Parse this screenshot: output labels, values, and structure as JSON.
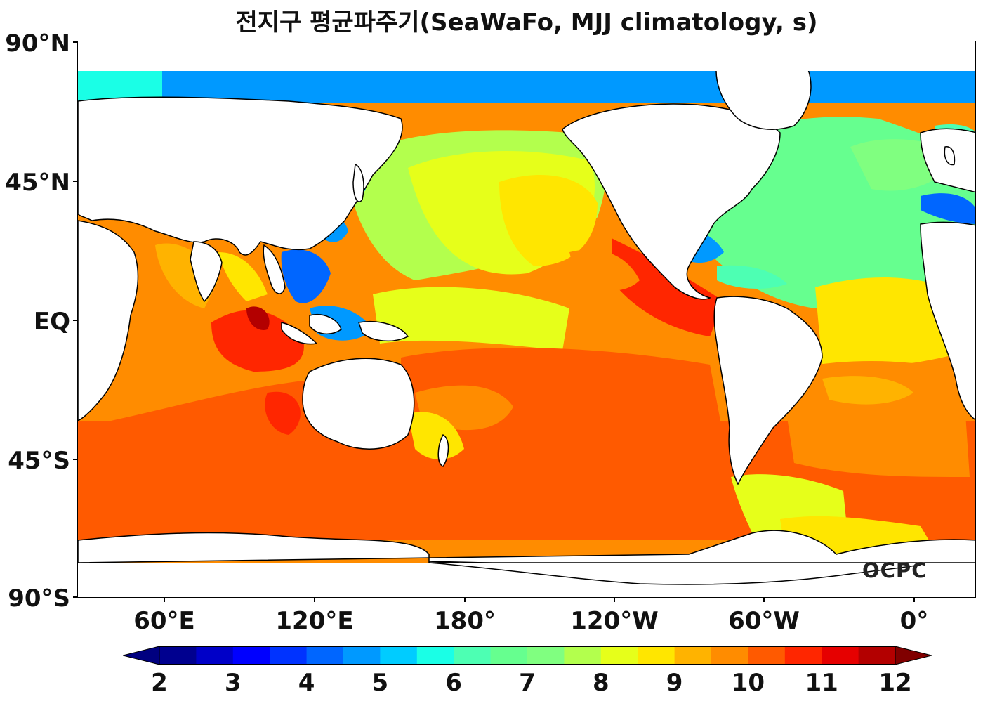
{
  "title": "전지구 평균파주기(SeaWaFo, MJJ climatology, s)",
  "y_ticks": [
    "90°N",
    "45°N",
    "EQ",
    "45°S",
    "90°S"
  ],
  "x_ticks": [
    "60°E",
    "120°E",
    "180°",
    "120°W",
    "60°W",
    "0°"
  ],
  "colorbar": {
    "labels": [
      "2",
      "3",
      "4",
      "5",
      "6",
      "7",
      "8",
      "9",
      "10",
      "11",
      "12"
    ],
    "colors": [
      "#00008f",
      "#0000c8",
      "#0000ff",
      "#0033ff",
      "#0066ff",
      "#0099ff",
      "#00ccff",
      "#1affe6",
      "#4dffb3",
      "#66ff8f",
      "#80ff80",
      "#b3ff4d",
      "#e6ff1a",
      "#ffe600",
      "#ffb300",
      "#ff8c00",
      "#ff5a00",
      "#ff2600",
      "#e60000",
      "#b30000"
    ],
    "min_color": "#000080",
    "max_color": "#800000"
  },
  "logo": "OCPC"
}
